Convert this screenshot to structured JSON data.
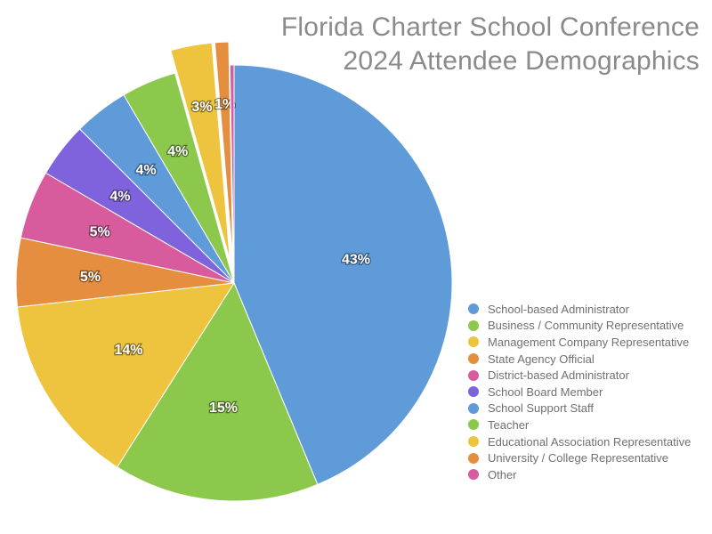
{
  "chart_data": {
    "type": "pie",
    "title_lines": [
      "Florida Charter School Conference",
      "2024 Attendee Demographics"
    ],
    "legend_position": "bottom-right",
    "slices": [
      {
        "name": "School-based Administrator",
        "value": 43,
        "label": "43%",
        "color": "#5f9bd9"
      },
      {
        "name": "Business / Community Representative",
        "value": 15,
        "label": "15%",
        "color": "#8cc84b"
      },
      {
        "name": "Management Company Representative",
        "value": 14,
        "label": "14%",
        "color": "#eec43e"
      },
      {
        "name": "State Agency Official",
        "value": 5,
        "label": "5%",
        "color": "#e58e3f"
      },
      {
        "name": "District-based Administrator",
        "value": 5,
        "label": "5%",
        "color": "#d85b9d"
      },
      {
        "name": "School Board Member",
        "value": 4,
        "label": "4%",
        "color": "#7f63dd"
      },
      {
        "name": "School Support Staff",
        "value": 4,
        "label": "4%",
        "color": "#5f9bd9"
      },
      {
        "name": "Teacher",
        "value": 4,
        "label": "4%",
        "color": "#8cc84b"
      },
      {
        "name": "Educational Association Representative",
        "value": 3,
        "label": "3%",
        "color": "#eec43e",
        "exploded": true
      },
      {
        "name": "University / College Representative",
        "value": 1,
        "label": "1%",
        "color": "#e58e3f",
        "exploded": true
      },
      {
        "name": "Other",
        "value": 0.3,
        "label": "",
        "color": "#d85b9d"
      }
    ]
  }
}
